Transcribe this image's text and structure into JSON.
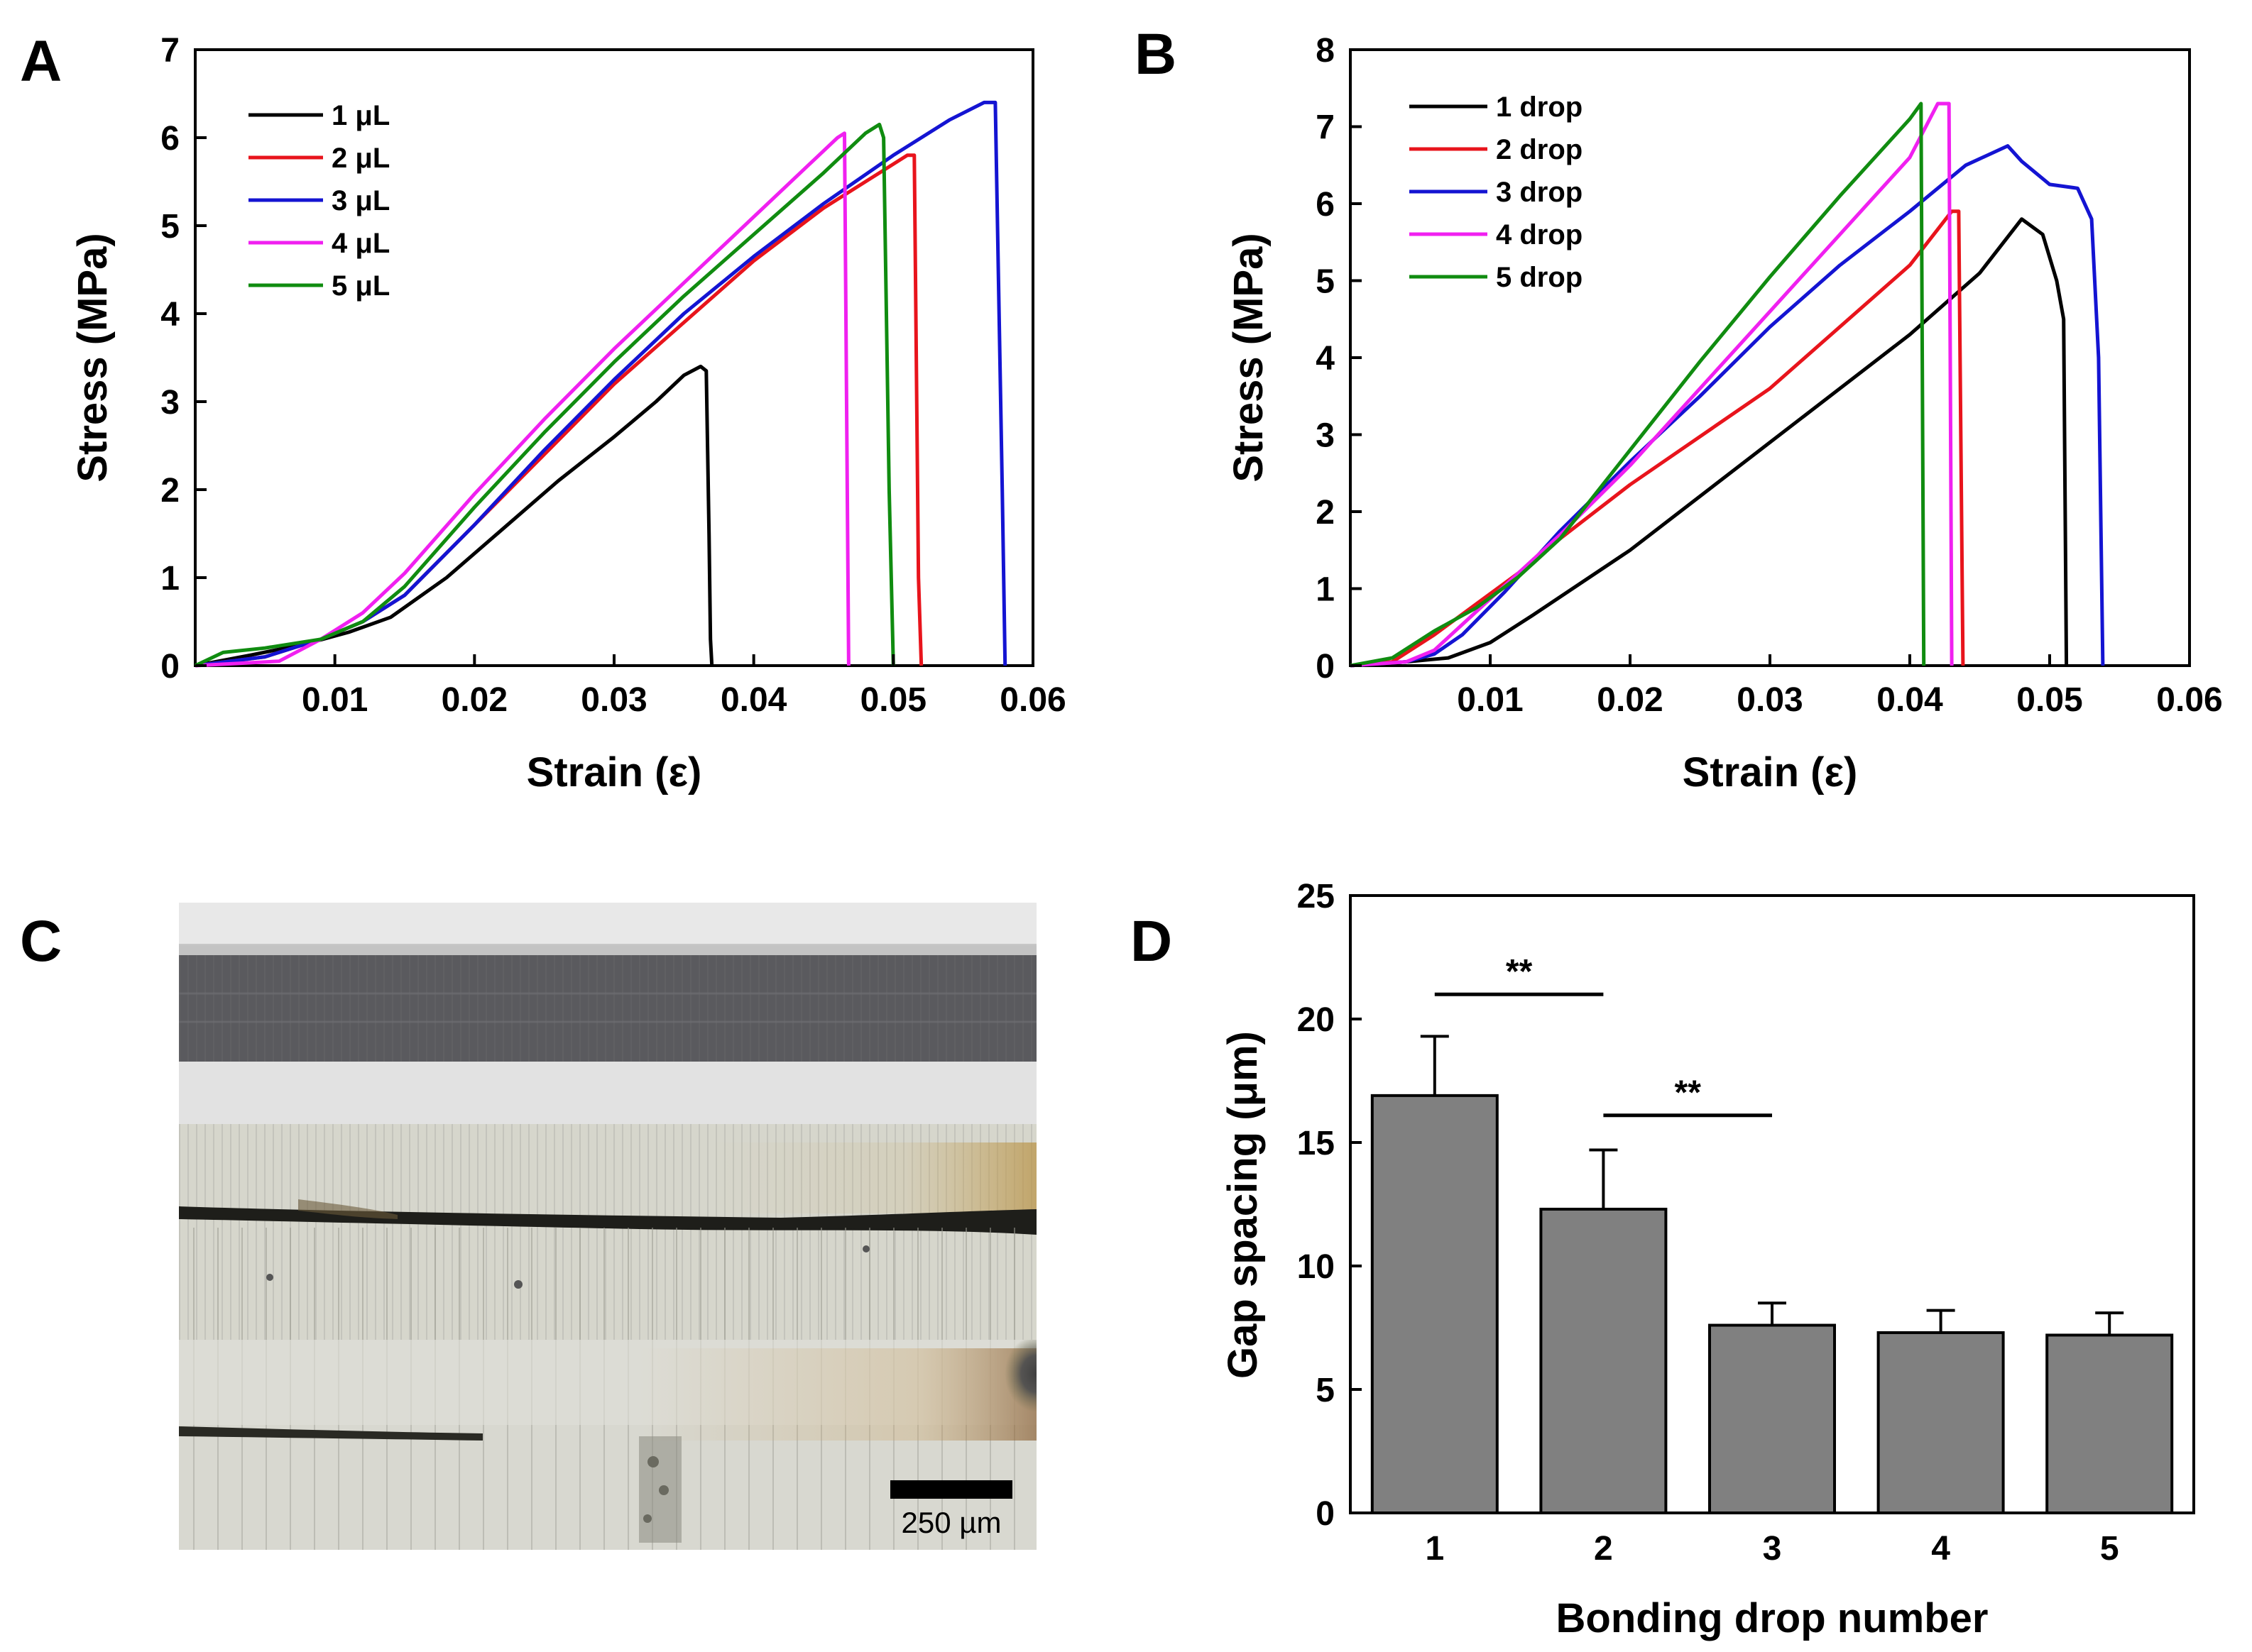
{
  "panels": {
    "A": "A",
    "B": "B",
    "C": "C",
    "D": "D"
  },
  "colors": {
    "black": "#000000",
    "red": "#e8141c",
    "blue": "#1414d2",
    "magenta": "#f020f0",
    "green": "#108c10",
    "bar_fill": "#808080"
  },
  "micrograph": {
    "scale_bar_label": "250 µm",
    "description_icon": "micrograph-image"
  },
  "chart_data": [
    {
      "id": "A",
      "type": "line",
      "xlabel": "Strain (ε)",
      "ylabel": "Stress (MPa)",
      "xlim": [
        0,
        0.06
      ],
      "ylim": [
        0,
        7
      ],
      "xticks": [
        0.01,
        0.02,
        0.03,
        0.04,
        0.05,
        0.06
      ],
      "xtick_labels": [
        "0.01",
        "0.02",
        "0.03",
        "0.04",
        "0.05",
        "0.06"
      ],
      "yticks": [
        0,
        1,
        2,
        3,
        4,
        5,
        6,
        7
      ],
      "ytick_labels": [
        "0",
        "1",
        "2",
        "3",
        "4",
        "5",
        "6",
        "7"
      ],
      "legend_position": "top-left",
      "series": [
        {
          "name": "1 μL",
          "color": "#000000",
          "x": [
            0,
            0.004,
            0.008,
            0.011,
            0.014,
            0.018,
            0.022,
            0.026,
            0.03,
            0.033,
            0.035,
            0.0362,
            0.0366,
            0.0368,
            0.0369,
            0.037
          ],
          "y": [
            0,
            0.12,
            0.25,
            0.38,
            0.55,
            1.0,
            1.55,
            2.1,
            2.6,
            3.0,
            3.3,
            3.4,
            3.35,
            1.5,
            0.3,
            0
          ]
        },
        {
          "name": "2 μL",
          "color": "#e8141c",
          "x": [
            0,
            0.005,
            0.009,
            0.012,
            0.015,
            0.02,
            0.025,
            0.03,
            0.035,
            0.04,
            0.045,
            0.049,
            0.051,
            0.0515,
            0.0518,
            0.052
          ],
          "y": [
            0,
            0.1,
            0.3,
            0.5,
            0.8,
            1.6,
            2.4,
            3.2,
            3.9,
            4.6,
            5.2,
            5.6,
            5.8,
            5.8,
            1.0,
            0
          ]
        },
        {
          "name": "3 μL",
          "color": "#1414d2",
          "x": [
            0,
            0.005,
            0.009,
            0.012,
            0.015,
            0.02,
            0.025,
            0.03,
            0.035,
            0.04,
            0.045,
            0.05,
            0.054,
            0.0565,
            0.0573,
            0.0578,
            0.058
          ],
          "y": [
            0,
            0.1,
            0.3,
            0.5,
            0.8,
            1.6,
            2.45,
            3.25,
            4.0,
            4.65,
            5.25,
            5.8,
            6.2,
            6.4,
            6.4,
            2.0,
            0
          ]
        },
        {
          "name": "4 μL",
          "color": "#f020f0",
          "x": [
            0,
            0.006,
            0.009,
            0.012,
            0.015,
            0.02,
            0.025,
            0.03,
            0.035,
            0.04,
            0.044,
            0.046,
            0.0465,
            0.0467,
            0.0468
          ],
          "y": [
            0,
            0.05,
            0.3,
            0.6,
            1.05,
            1.95,
            2.8,
            3.6,
            4.35,
            5.1,
            5.7,
            6.0,
            6.05,
            2.0,
            0
          ]
        },
        {
          "name": "5 μL",
          "color": "#108c10",
          "x": [
            0,
            0.002,
            0.005,
            0.009,
            0.012,
            0.015,
            0.02,
            0.025,
            0.03,
            0.035,
            0.04,
            0.045,
            0.048,
            0.049,
            0.0493,
            0.0497,
            0.05
          ],
          "y": [
            0,
            0.15,
            0.2,
            0.3,
            0.5,
            0.9,
            1.8,
            2.65,
            3.45,
            4.2,
            4.9,
            5.6,
            6.05,
            6.15,
            6.0,
            2.0,
            0
          ]
        }
      ]
    },
    {
      "id": "B",
      "type": "line",
      "xlabel": "Strain (ε)",
      "ylabel": "Stress (MPa)",
      "xlim": [
        0,
        0.06
      ],
      "ylim": [
        0,
        8
      ],
      "xticks": [
        0.01,
        0.02,
        0.03,
        0.04,
        0.05,
        0.06
      ],
      "xtick_labels": [
        "0.01",
        "0.02",
        "0.03",
        "0.04",
        "0.05",
        "0.06"
      ],
      "yticks": [
        0,
        1,
        2,
        3,
        4,
        5,
        6,
        7,
        8
      ],
      "ytick_labels": [
        "0",
        "1",
        "2",
        "3",
        "4",
        "5",
        "6",
        "7",
        "8"
      ],
      "legend_position": "top-left",
      "series": [
        {
          "name": "1 drop",
          "color": "#000000",
          "x": [
            0,
            0.004,
            0.007,
            0.01,
            0.013,
            0.02,
            0.03,
            0.04,
            0.045,
            0.048,
            0.0495,
            0.0505,
            0.051,
            0.0512
          ],
          "y": [
            0,
            0.05,
            0.1,
            0.3,
            0.65,
            1.5,
            2.9,
            4.3,
            5.1,
            5.8,
            5.6,
            5.0,
            4.5,
            0
          ]
        },
        {
          "name": "2 drop",
          "color": "#e8141c",
          "x": [
            0,
            0.003,
            0.006,
            0.009,
            0.012,
            0.015,
            0.02,
            0.03,
            0.04,
            0.043,
            0.0435,
            0.0438
          ],
          "y": [
            0,
            0.05,
            0.4,
            0.8,
            1.2,
            1.65,
            2.35,
            3.6,
            5.2,
            5.9,
            5.9,
            0
          ]
        },
        {
          "name": "3 drop",
          "color": "#1414d2",
          "x": [
            0,
            0.004,
            0.006,
            0.008,
            0.011,
            0.015,
            0.02,
            0.025,
            0.03,
            0.035,
            0.04,
            0.044,
            0.047,
            0.048,
            0.05,
            0.052,
            0.053,
            0.0535,
            0.0538
          ],
          "y": [
            0,
            0.05,
            0.15,
            0.4,
            0.95,
            1.75,
            2.65,
            3.5,
            4.4,
            5.2,
            5.9,
            6.5,
            6.75,
            6.55,
            6.25,
            6.2,
            5.8,
            4.0,
            0
          ]
        },
        {
          "name": "4 drop",
          "color": "#f020f0",
          "x": [
            0,
            0.004,
            0.006,
            0.009,
            0.012,
            0.015,
            0.02,
            0.025,
            0.03,
            0.035,
            0.04,
            0.042,
            0.0428,
            0.043
          ],
          "y": [
            0,
            0.05,
            0.2,
            0.7,
            1.2,
            1.7,
            2.6,
            3.6,
            4.6,
            5.6,
            6.6,
            7.3,
            7.3,
            0
          ]
        },
        {
          "name": "5 drop",
          "color": "#108c10",
          "x": [
            0,
            0.003,
            0.006,
            0.009,
            0.012,
            0.015,
            0.02,
            0.025,
            0.03,
            0.035,
            0.04,
            0.0408,
            0.041
          ],
          "y": [
            0,
            0.1,
            0.45,
            0.75,
            1.15,
            1.65,
            2.8,
            3.95,
            5.05,
            6.1,
            7.1,
            7.3,
            0
          ]
        }
      ]
    },
    {
      "id": "D",
      "type": "bar",
      "xlabel": "Bonding drop number",
      "ylabel": "Gap spacing (μm)",
      "categories": [
        "1",
        "2",
        "3",
        "4",
        "5"
      ],
      "values": [
        16.9,
        12.3,
        7.6,
        7.3,
        7.2
      ],
      "errors": [
        2.4,
        2.4,
        0.9,
        0.9,
        0.9
      ],
      "ylim": [
        0,
        25
      ],
      "yticks": [
        0,
        5,
        10,
        15,
        20,
        25
      ],
      "ytick_labels": [
        "0",
        "5",
        "10",
        "15",
        "20",
        "25"
      ],
      "annotations": [
        {
          "text": "**",
          "from_category": 0,
          "to_category": 1,
          "y": 21.0
        },
        {
          "text": "**",
          "from_category": 1,
          "to_category": 2,
          "y": 16.1
        }
      ]
    }
  ]
}
